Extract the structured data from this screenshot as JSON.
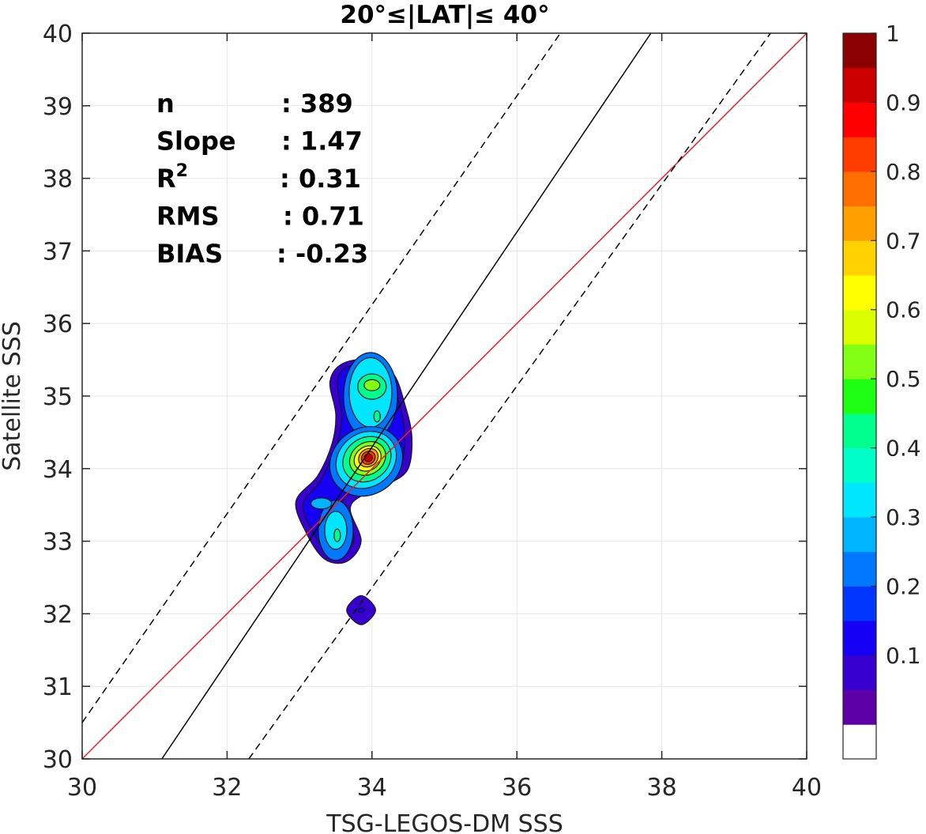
{
  "chart_data": {
    "type": "contour",
    "title": "20°≤|LAT|≤ 40°",
    "xlabel": "TSG-LEGOS-DM SSS",
    "ylabel": "Satellite SSS",
    "xlim": [
      30,
      40
    ],
    "ylim": [
      30,
      40
    ],
    "xticks": [
      "30",
      "32",
      "34",
      "36",
      "38",
      "40"
    ],
    "yticks": [
      "30",
      "31",
      "32",
      "33",
      "34",
      "35",
      "36",
      "37",
      "38",
      "39",
      "40"
    ],
    "grid": true,
    "stats": [
      {
        "label": "n",
        "value": ": 389"
      },
      {
        "label": "Slope",
        "value": ": 1.47"
      },
      {
        "label": "R",
        "sup": "2",
        "value": ": 0.31"
      },
      {
        "label": "RMS",
        "value": ": 0.71"
      },
      {
        "label": "BIAS",
        "value": ": -0.23"
      }
    ],
    "lines": [
      {
        "name": "one_to_one",
        "color": "#e8221f",
        "dash": false,
        "points": [
          [
            30,
            30
          ],
          [
            40,
            40
          ]
        ]
      },
      {
        "name": "regression",
        "color": "#000000",
        "dash": false,
        "points": [
          [
            31.1,
            30
          ],
          [
            37.85,
            40
          ]
        ]
      },
      {
        "name": "upper_bound",
        "color": "#000000",
        "dash": true,
        "points": [
          [
            30,
            30.5
          ],
          [
            36.6,
            40
          ]
        ]
      },
      {
        "name": "lower_bound",
        "color": "#000000",
        "dash": true,
        "points": [
          [
            32.3,
            30
          ],
          [
            39.5,
            40
          ]
        ]
      }
    ],
    "density_peaks": [
      {
        "x": 33.95,
        "y": 34.15,
        "max": 1.0
      },
      {
        "x": 34.0,
        "y": 35.15,
        "max": 0.55
      },
      {
        "x": 33.5,
        "y": 33.1,
        "max": 0.4
      },
      {
        "x": 33.3,
        "y": 33.5,
        "max": 0.3
      },
      {
        "x": 33.85,
        "y": 32.05,
        "max": 0.1
      }
    ],
    "colorbar": {
      "ticks": [
        "0.1",
        "0.2",
        "0.3",
        "0.4",
        "0.5",
        "0.6",
        "0.7",
        "0.8",
        "0.9",
        "1"
      ],
      "levels": [
        "#ffffff",
        "#5d00a8",
        "#3700cf",
        "#1500f3",
        "#0037ff",
        "#0078ff",
        "#00b4ff",
        "#00e6ff",
        "#00ffc8",
        "#00ff8c",
        "#1eff14",
        "#82ff14",
        "#dcff00",
        "#ffff00",
        "#ffd200",
        "#ffa000",
        "#ff6e00",
        "#ff3c00",
        "#ff0000",
        "#cd0000",
        "#8b0000"
      ]
    }
  }
}
